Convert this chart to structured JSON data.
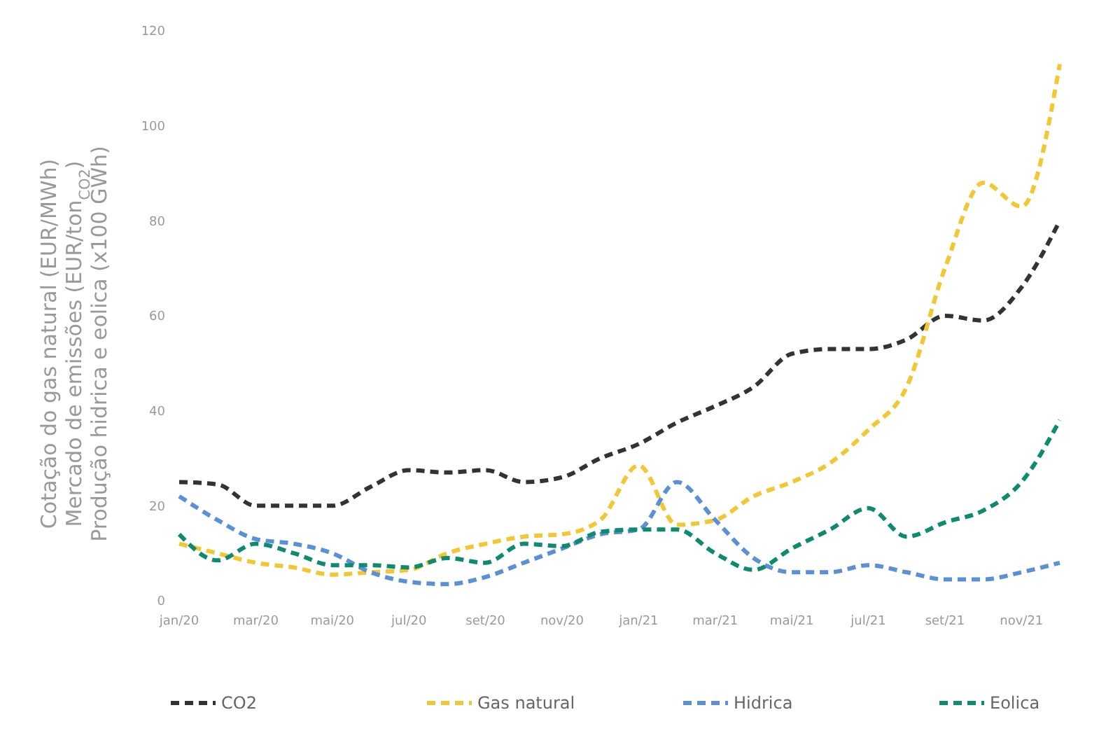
{
  "chart_data": {
    "type": "line",
    "ylabel": "Cotação do gas natural (EUR/MWh)\nMercado de emissões (EUR/ton$_{CO2}$)\nProdução hidrica e eolica (x100 GWh)",
    "categories": [
      "jan/20",
      null,
      "mar/20",
      null,
      "mai/20",
      null,
      "jul/20",
      null,
      "set/20",
      null,
      "nov/20",
      null,
      "jan/21",
      null,
      "mar/21",
      null,
      "mai/21",
      null,
      "jul/21",
      null,
      "set/21",
      null,
      "nov/21",
      null
    ],
    "series": [
      {
        "name": "CO2",
        "color": "#333333",
        "values": [
          25,
          24.5,
          20,
          20,
          20,
          24,
          27.5,
          27,
          27.5,
          25,
          26,
          30,
          33,
          37.5,
          41,
          45,
          52,
          53,
          53,
          55,
          60,
          59,
          66,
          80
        ]
      },
      {
        "name": "Gas natural",
        "color": "#f2c734",
        "values": [
          12,
          10,
          8,
          7,
          5.5,
          6,
          6.5,
          10,
          12,
          13.5,
          14,
          17,
          28.5,
          16,
          17,
          22,
          25,
          29,
          36,
          45,
          70,
          88,
          83,
          113
        ]
      },
      {
        "name": "Hidrica",
        "color": "#5b8fd6",
        "values": [
          22,
          17,
          13,
          12,
          10,
          6,
          4,
          3.5,
          5,
          8,
          11,
          14,
          15,
          25,
          17,
          9,
          6,
          6,
          7.5,
          6,
          4.5,
          4.5,
          6,
          8
        ]
      },
      {
        "name": "Eolica",
        "color": "#0e8a6e",
        "values": [
          14,
          8.5,
          12,
          10,
          7.5,
          7.5,
          7,
          9,
          8,
          12,
          11.5,
          14.5,
          15,
          15,
          10,
          6.5,
          11,
          15,
          19.5,
          13.5,
          16.5,
          19,
          25,
          38
        ]
      }
    ],
    "ylim": [
      0,
      120
    ],
    "yticks": [
      0,
      20,
      40,
      60,
      80,
      100,
      120
    ],
    "grid": false,
    "legend": "bottom",
    "line_style": "dashed",
    "marker": "none"
  }
}
